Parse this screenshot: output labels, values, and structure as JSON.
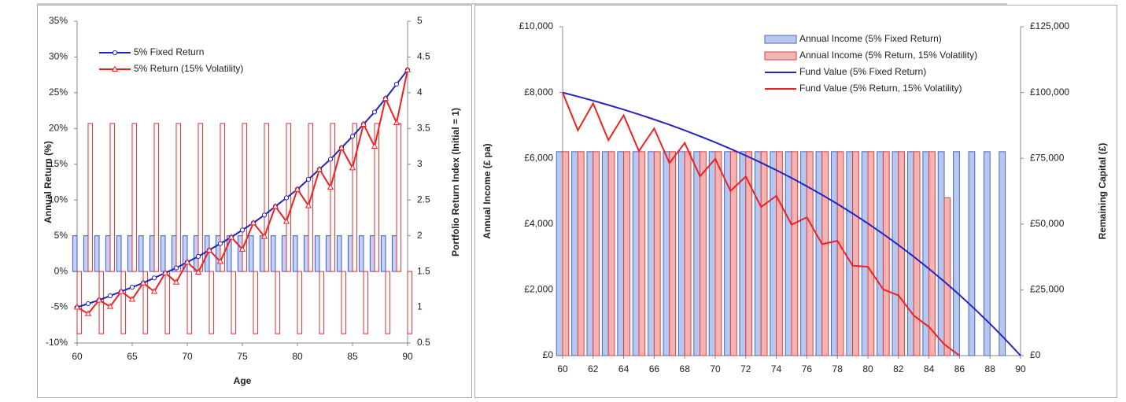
{
  "chart_data": [
    {
      "type": "combo",
      "xlabel": "Age",
      "ylabel": "Annual Return (%)",
      "y2label": "Portfolio Return Index (Initial = 1)",
      "x": [
        60,
        61,
        62,
        63,
        64,
        65,
        66,
        67,
        68,
        69,
        70,
        71,
        72,
        73,
        74,
        75,
        76,
        77,
        78,
        79,
        80,
        81,
        82,
        83,
        84,
        85,
        86,
        87,
        88,
        89,
        90
      ],
      "xlim": [
        60,
        90
      ],
      "xticks": [
        60,
        65,
        70,
        75,
        80,
        85,
        90
      ],
      "ylim": [
        -10,
        35
      ],
      "yticks": [
        {
          "value": -10,
          "label": "-10%"
        },
        {
          "value": -5,
          "label": "-5%"
        },
        {
          "value": 0,
          "label": "0%"
        },
        {
          "value": 5,
          "label": "5%"
        },
        {
          "value": 10,
          "label": "10%"
        },
        {
          "value": 15,
          "label": "15%"
        },
        {
          "value": 20,
          "label": "20%"
        },
        {
          "value": 25,
          "label": "25%"
        },
        {
          "value": 30,
          "label": "30%"
        },
        {
          "value": 35,
          "label": "35%"
        }
      ],
      "y2lim": [
        0.5,
        5
      ],
      "y2ticks": [
        0.5,
        1,
        1.5,
        2,
        2.5,
        3,
        3.5,
        4,
        4.5,
        5
      ],
      "legend": "upper left",
      "series": [
        {
          "type": "bar",
          "axis": "y",
          "color": "#3a5cd0",
          "fill": "#c5d3f0",
          "values": [
            5,
            5,
            5,
            5,
            5,
            5,
            5,
            5,
            5,
            5,
            5,
            5,
            5,
            5,
            5,
            5,
            5,
            5,
            5,
            5,
            5,
            5,
            5,
            5,
            5,
            5,
            5,
            5,
            5,
            5,
            null
          ]
        },
        {
          "type": "bar",
          "axis": "y",
          "color": "#e82828",
          "fill": "#ffffff",
          "values": [
            -8.7,
            20.7,
            -8.7,
            20.7,
            -8.7,
            20.7,
            -8.7,
            20.7,
            -8.7,
            20.7,
            -8.7,
            20.7,
            -8.7,
            20.7,
            -8.7,
            20.7,
            -8.7,
            20.7,
            -8.7,
            20.7,
            -8.7,
            20.7,
            -8.7,
            20.7,
            -8.7,
            20.7,
            -8.7,
            20.7,
            -8.7,
            20.7,
            -8.7
          ]
        },
        {
          "type": "line",
          "axis": "y2",
          "name": "5% Fixed Return",
          "color": "#2424c0",
          "marker": "circle",
          "values": [
            1.0,
            1.05,
            1.1,
            1.16,
            1.22,
            1.28,
            1.34,
            1.41,
            1.48,
            1.55,
            1.63,
            1.71,
            1.8,
            1.89,
            1.98,
            2.08,
            2.18,
            2.29,
            2.41,
            2.53,
            2.65,
            2.79,
            2.93,
            3.07,
            3.23,
            3.39,
            3.56,
            3.73,
            3.92,
            4.12,
            4.32
          ]
        },
        {
          "type": "line",
          "axis": "y2",
          "name": "5% Return (15% Volatility)",
          "color": "#f02020",
          "marker": "triangle",
          "values": [
            1.0,
            0.91,
            1.1,
            1.01,
            1.22,
            1.11,
            1.34,
            1.22,
            1.48,
            1.35,
            1.63,
            1.49,
            1.8,
            1.64,
            1.98,
            1.81,
            2.18,
            1.99,
            2.41,
            2.2,
            2.65,
            2.42,
            2.93,
            2.68,
            3.23,
            2.95,
            3.56,
            3.25,
            3.92,
            3.58,
            4.32
          ]
        }
      ]
    },
    {
      "type": "combo",
      "ylabel": "Annual Income (£ pa)",
      "y2label": "Remaining Capital (£)",
      "x": [
        60,
        61,
        62,
        63,
        64,
        65,
        66,
        67,
        68,
        69,
        70,
        71,
        72,
        73,
        74,
        75,
        76,
        77,
        78,
        79,
        80,
        81,
        82,
        83,
        84,
        85,
        86,
        87,
        88,
        89,
        90
      ],
      "xlim": [
        60,
        90
      ],
      "xticks": [
        60,
        62,
        64,
        66,
        68,
        70,
        72,
        74,
        76,
        78,
        80,
        82,
        84,
        86,
        88,
        90
      ],
      "ylim": [
        0,
        10000
      ],
      "yticks": [
        {
          "value": 0,
          "label": "£0"
        },
        {
          "value": 2000,
          "label": "£2,000"
        },
        {
          "value": 4000,
          "label": "£4,000"
        },
        {
          "value": 6000,
          "label": "£6,000"
        },
        {
          "value": 8000,
          "label": "£8,000"
        },
        {
          "value": 10000,
          "label": "£10,000"
        }
      ],
      "y2lim": [
        0,
        125000
      ],
      "y2ticks": [
        {
          "value": 0,
          "label": "£0"
        },
        {
          "value": 25000,
          "label": "£25,000"
        },
        {
          "value": 50000,
          "label": "£50,000"
        },
        {
          "value": 75000,
          "label": "£75,000"
        },
        {
          "value": 100000,
          "label": "£100,000"
        },
        {
          "value": 125000,
          "label": "£125,000"
        }
      ],
      "legend": "upper right",
      "series": [
        {
          "type": "bar",
          "axis": "y",
          "name": "Annual Income (5% Fixed Return)",
          "color": "#4a66c8",
          "fill": "#b8c8ec",
          "values": [
            6200,
            6200,
            6200,
            6200,
            6200,
            6200,
            6200,
            6200,
            6200,
            6200,
            6200,
            6200,
            6200,
            6200,
            6200,
            6200,
            6200,
            6200,
            6200,
            6200,
            6200,
            6200,
            6200,
            6200,
            6200,
            6200,
            6200,
            6200,
            6200,
            6200,
            null
          ]
        },
        {
          "type": "bar",
          "axis": "y",
          "name": "Annual Income (5% Return, 15% Volatility)",
          "color": "#e04040",
          "fill": "#f4b4b4",
          "values": [
            6200,
            6200,
            6200,
            6200,
            6200,
            6200,
            6200,
            6200,
            6200,
            6200,
            6200,
            6200,
            6200,
            6200,
            6200,
            6200,
            6200,
            6200,
            6200,
            6200,
            6200,
            6200,
            6200,
            6200,
            6200,
            4800,
            null,
            null,
            null,
            null,
            null
          ]
        },
        {
          "type": "line",
          "axis": "y2",
          "name": "Fund Value (5% Fixed Return)",
          "color": "#2424c0",
          "values": [
            100000,
            98485,
            96905,
            95245,
            93503,
            91673,
            89752,
            87735,
            85617,
            83393,
            81058,
            78606,
            76032,
            73329,
            70491,
            67511,
            64382,
            61096,
            57646,
            54024,
            50220,
            46226,
            42033,
            37630,
            33007,
            28153,
            23056,
            17704,
            12084,
            6183,
            0
          ]
        },
        {
          "type": "line",
          "axis": "y2",
          "name": "Fund Value (5% Return, 15% Volatility)",
          "color": "#f02020",
          "values": [
            100000,
            85640,
            95884,
            81881,
            91347,
            77739,
            86348,
            73175,
            80839,
            68145,
            74768,
            62603,
            68078,
            56495,
            60706,
            49764,
            52582,
            42347,
            43629,
            34173,
            33763,
            25165,
            22891,
            15239,
            10910,
            4300,
            0,
            null,
            null,
            null,
            null
          ]
        }
      ]
    }
  ]
}
